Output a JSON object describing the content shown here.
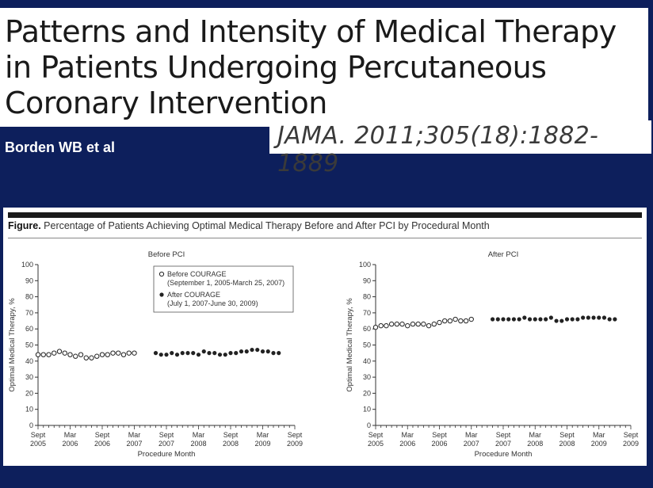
{
  "slide": {
    "title": "Patterns and Intensity of Medical Therapy in Patients Undergoing Percutaneous Coronary Intervention",
    "citation": "JAMA. 2011;305(18):1882-1889",
    "author": "Borden WB et al"
  },
  "figure": {
    "label": "Figure.",
    "caption": "Percentage of Patients Achieving Optimal Medical Therapy Before and After PCI by Procedural Month"
  },
  "legend": {
    "before_label": "Before COURAGE",
    "before_range": "(September 1, 2005-March 25, 2007)",
    "after_label": "After COURAGE",
    "after_range": "(July 1, 2007-June 30, 2009)"
  },
  "chart_data": [
    {
      "type": "scatter",
      "title": "Before PCI",
      "xlabel": "Procedure Month",
      "ylabel": "Optimal Medical Therapy, %",
      "ylim": [
        0,
        100
      ],
      "yticks": [
        0,
        10,
        20,
        30,
        40,
        50,
        60,
        70,
        80,
        90,
        100
      ],
      "xtick_labels": [
        [
          "Sept",
          "2005"
        ],
        [
          "Mar",
          "2006"
        ],
        [
          "Sept",
          "2006"
        ],
        [
          "Mar",
          "2007"
        ],
        [
          "Sept",
          "2007"
        ],
        [
          "Mar",
          "2008"
        ],
        [
          "Sept",
          "2008"
        ],
        [
          "Mar",
          "2009"
        ],
        [
          "Sept",
          "2009"
        ]
      ],
      "legend_position": "top-right",
      "series": [
        {
          "name": "Before COURAGE",
          "marker": "open-circle",
          "x": [
            "2005-09",
            "2005-10",
            "2005-11",
            "2005-12",
            "2006-01",
            "2006-02",
            "2006-03",
            "2006-04",
            "2006-05",
            "2006-06",
            "2006-07",
            "2006-08",
            "2006-09",
            "2006-10",
            "2006-11",
            "2006-12",
            "2007-01",
            "2007-02",
            "2007-03"
          ],
          "values": [
            44,
            44,
            44,
            45,
            46,
            45,
            44,
            43,
            44,
            42,
            42,
            43,
            44,
            44,
            45,
            45,
            44,
            45,
            45
          ]
        },
        {
          "name": "After COURAGE",
          "marker": "filled-circle",
          "x": [
            "2007-07",
            "2007-08",
            "2007-09",
            "2007-10",
            "2007-11",
            "2007-12",
            "2008-01",
            "2008-02",
            "2008-03",
            "2008-04",
            "2008-05",
            "2008-06",
            "2008-07",
            "2008-08",
            "2008-09",
            "2008-10",
            "2008-11",
            "2008-12",
            "2009-01",
            "2009-02",
            "2009-03",
            "2009-04",
            "2009-05",
            "2009-06"
          ],
          "values": [
            45,
            44,
            44,
            45,
            44,
            45,
            45,
            45,
            44,
            46,
            45,
            45,
            44,
            44,
            45,
            45,
            46,
            46,
            47,
            47,
            46,
            46,
            45,
            45
          ]
        }
      ]
    },
    {
      "type": "scatter",
      "title": "After PCI",
      "xlabel": "Procedure Month",
      "ylabel": "Optimal Medical Therapy, %",
      "ylim": [
        0,
        100
      ],
      "yticks": [
        0,
        10,
        20,
        30,
        40,
        50,
        60,
        70,
        80,
        90,
        100
      ],
      "xtick_labels": [
        [
          "Sept",
          "2005"
        ],
        [
          "Mar",
          "2006"
        ],
        [
          "Sept",
          "2006"
        ],
        [
          "Mar",
          "2007"
        ],
        [
          "Sept",
          "2007"
        ],
        [
          "Mar",
          "2008"
        ],
        [
          "Sept",
          "2008"
        ],
        [
          "Mar",
          "2009"
        ],
        [
          "Sept",
          "2009"
        ]
      ],
      "series": [
        {
          "name": "Before COURAGE",
          "marker": "open-circle",
          "x": [
            "2005-09",
            "2005-10",
            "2005-11",
            "2005-12",
            "2006-01",
            "2006-02",
            "2006-03",
            "2006-04",
            "2006-05",
            "2006-06",
            "2006-07",
            "2006-08",
            "2006-09",
            "2006-10",
            "2006-11",
            "2006-12",
            "2007-01",
            "2007-02",
            "2007-03"
          ],
          "values": [
            61,
            62,
            62,
            63,
            63,
            63,
            62,
            63,
            63,
            63,
            62,
            63,
            64,
            65,
            65,
            66,
            65,
            65,
            66
          ]
        },
        {
          "name": "After COURAGE",
          "marker": "filled-circle",
          "x": [
            "2007-07",
            "2007-08",
            "2007-09",
            "2007-10",
            "2007-11",
            "2007-12",
            "2008-01",
            "2008-02",
            "2008-03",
            "2008-04",
            "2008-05",
            "2008-06",
            "2008-07",
            "2008-08",
            "2008-09",
            "2008-10",
            "2008-11",
            "2008-12",
            "2009-01",
            "2009-02",
            "2009-03",
            "2009-04",
            "2009-05",
            "2009-06"
          ],
          "values": [
            66,
            66,
            66,
            66,
            66,
            66,
            67,
            66,
            66,
            66,
            66,
            67,
            65,
            65,
            66,
            66,
            66,
            67,
            67,
            67,
            67,
            67,
            66,
            66
          ]
        }
      ]
    }
  ]
}
